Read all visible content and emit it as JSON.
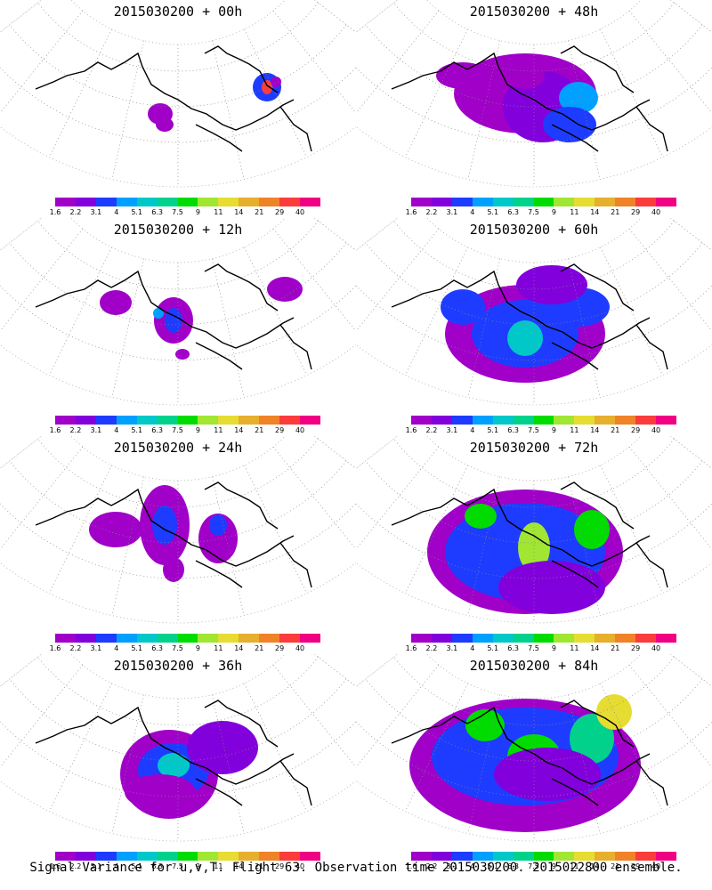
{
  "footer": "Signal Variance for u,v,T. Flight 63. Observation time 2015030200. 2015022800 ensemble.",
  "colorbar": {
    "labels": [
      "1.6",
      "2.2",
      "3.1",
      "4",
      "5.1",
      "6.3",
      "7.5",
      "9",
      "11",
      "14",
      "21",
      "29",
      "40"
    ],
    "colors": [
      "#a000c8",
      "#8200dc",
      "#1e3cff",
      "#00a0ff",
      "#00c8c8",
      "#00d28c",
      "#00dc00",
      "#a0e632",
      "#e6dc32",
      "#e6af2d",
      "#f08228",
      "#fa3c3c",
      "#f00082"
    ]
  },
  "panels": [
    {
      "title": "2015030200 + 00h"
    },
    {
      "title": "2015030200 + 48h"
    },
    {
      "title": "2015030200 + 12h"
    },
    {
      "title": "2015030200 + 60h"
    },
    {
      "title": "2015030200 + 24h"
    },
    {
      "title": "2015030200 + 72h"
    },
    {
      "title": "2015030200 + 36h"
    },
    {
      "title": "2015030200 + 84h"
    }
  ]
}
